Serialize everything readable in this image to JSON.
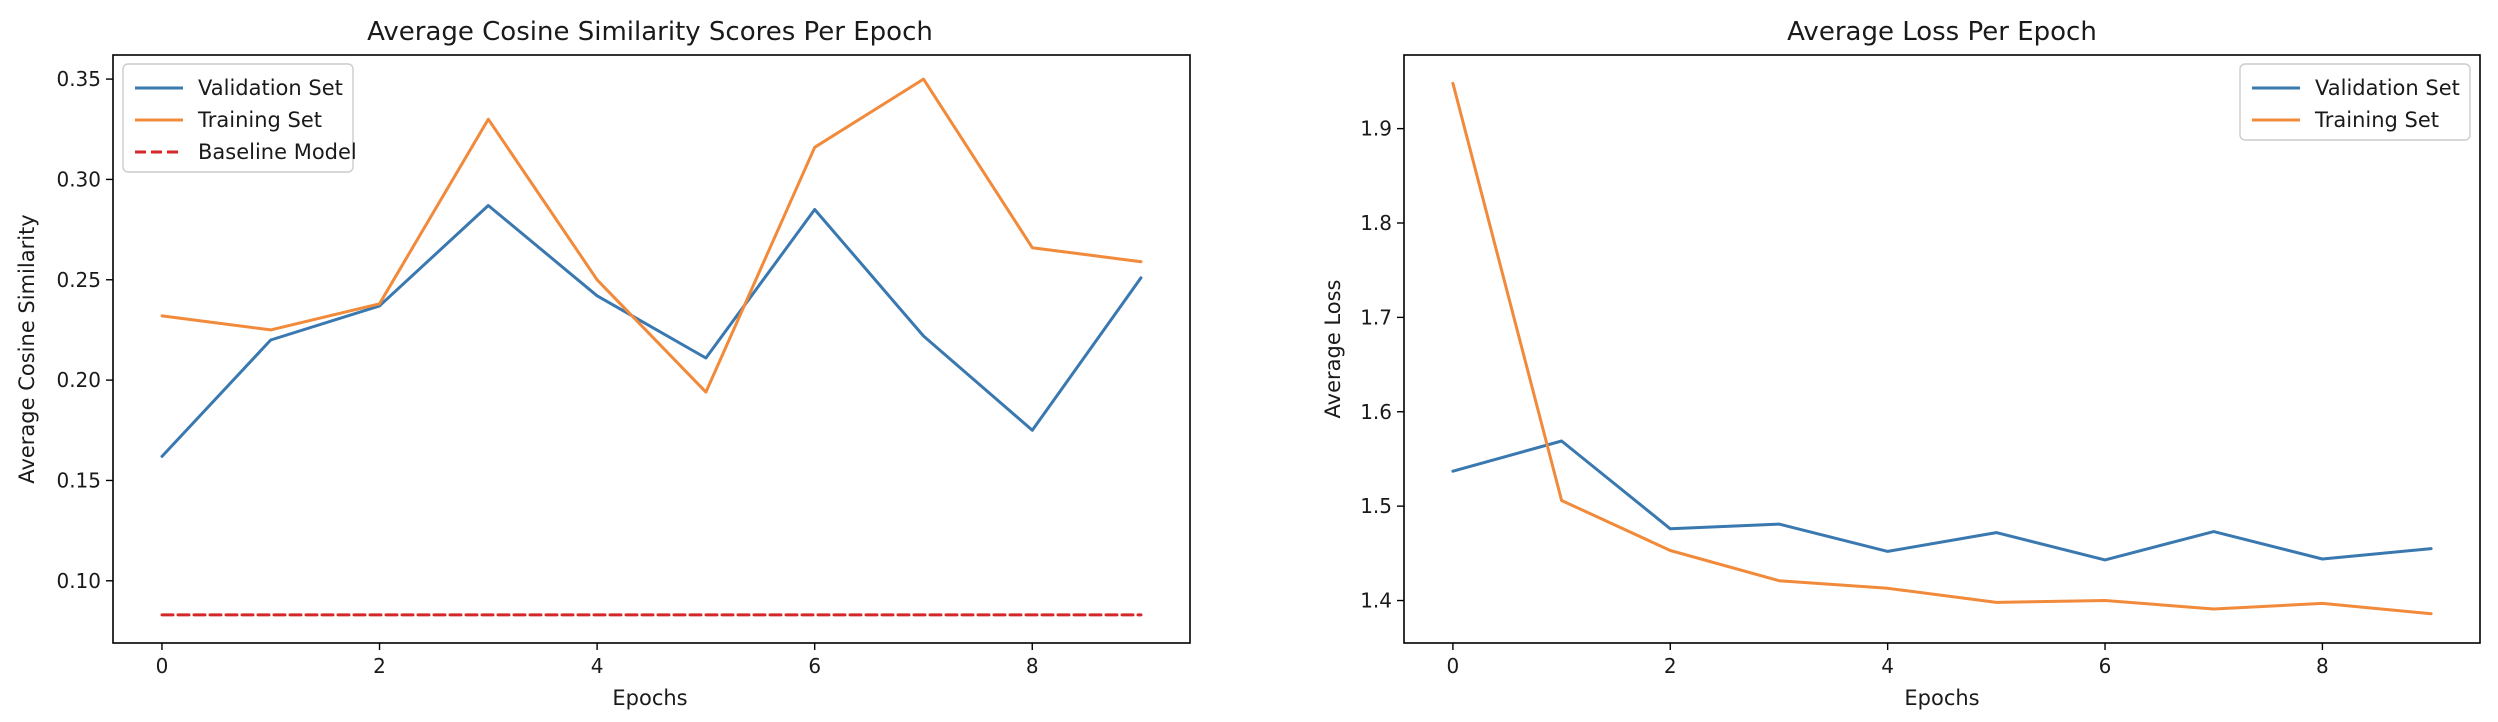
{
  "chart_data": [
    {
      "type": "line",
      "title": "Average Cosine Similarity Scores Per Epoch",
      "xlabel": "Epochs",
      "ylabel": "Average Cosine Similarity",
      "xlim": [
        -0.45,
        9.45
      ],
      "ylim": [
        0.069,
        0.362
      ],
      "xticks": [
        0,
        2,
        4,
        6,
        8
      ],
      "yticks": [
        0.1,
        0.15,
        0.2,
        0.25,
        0.3,
        0.35
      ],
      "ytick_decimals": 2,
      "grid": false,
      "legend_placement": "top-left",
      "x": [
        0,
        1,
        2,
        3,
        4,
        5,
        6,
        7,
        8,
        9
      ],
      "series": [
        {
          "name": "Validation Set",
          "color": "#3a78b0",
          "style": "solid",
          "values": [
            0.162,
            0.22,
            0.237,
            0.287,
            0.242,
            0.211,
            0.285,
            0.222,
            0.175,
            0.251
          ]
        },
        {
          "name": "Training Set",
          "color": "#f18a3a",
          "style": "solid",
          "values": [
            0.232,
            0.225,
            0.238,
            0.33,
            0.25,
            0.194,
            0.316,
            0.35,
            0.266,
            0.259
          ]
        },
        {
          "name": "Baseline Model",
          "color": "#d62728",
          "style": "dashed",
          "values": [
            0.083,
            0.083,
            0.083,
            0.083,
            0.083,
            0.083,
            0.083,
            0.083,
            0.083,
            0.083
          ]
        }
      ]
    },
    {
      "type": "line",
      "title": "Average Loss Per Epoch",
      "xlabel": "Epochs",
      "ylabel": "Average Loss",
      "xlim": [
        -0.45,
        9.45
      ],
      "ylim": [
        1.355,
        1.978
      ],
      "xticks": [
        0,
        2,
        4,
        6,
        8
      ],
      "yticks": [
        1.4,
        1.5,
        1.6,
        1.7,
        1.8,
        1.9
      ],
      "ytick_decimals": 1,
      "grid": false,
      "legend_placement": "top-right",
      "x": [
        0,
        1,
        2,
        3,
        4,
        5,
        6,
        7,
        8,
        9
      ],
      "series": [
        {
          "name": "Validation Set",
          "color": "#3a78b0",
          "style": "solid",
          "values": [
            1.537,
            1.569,
            1.476,
            1.481,
            1.452,
            1.472,
            1.443,
            1.473,
            1.444,
            1.455
          ]
        },
        {
          "name": "Training Set",
          "color": "#f18a3a",
          "style": "solid",
          "values": [
            1.948,
            1.506,
            1.453,
            1.421,
            1.413,
            1.398,
            1.4,
            1.391,
            1.397,
            1.386
          ]
        }
      ]
    }
  ]
}
